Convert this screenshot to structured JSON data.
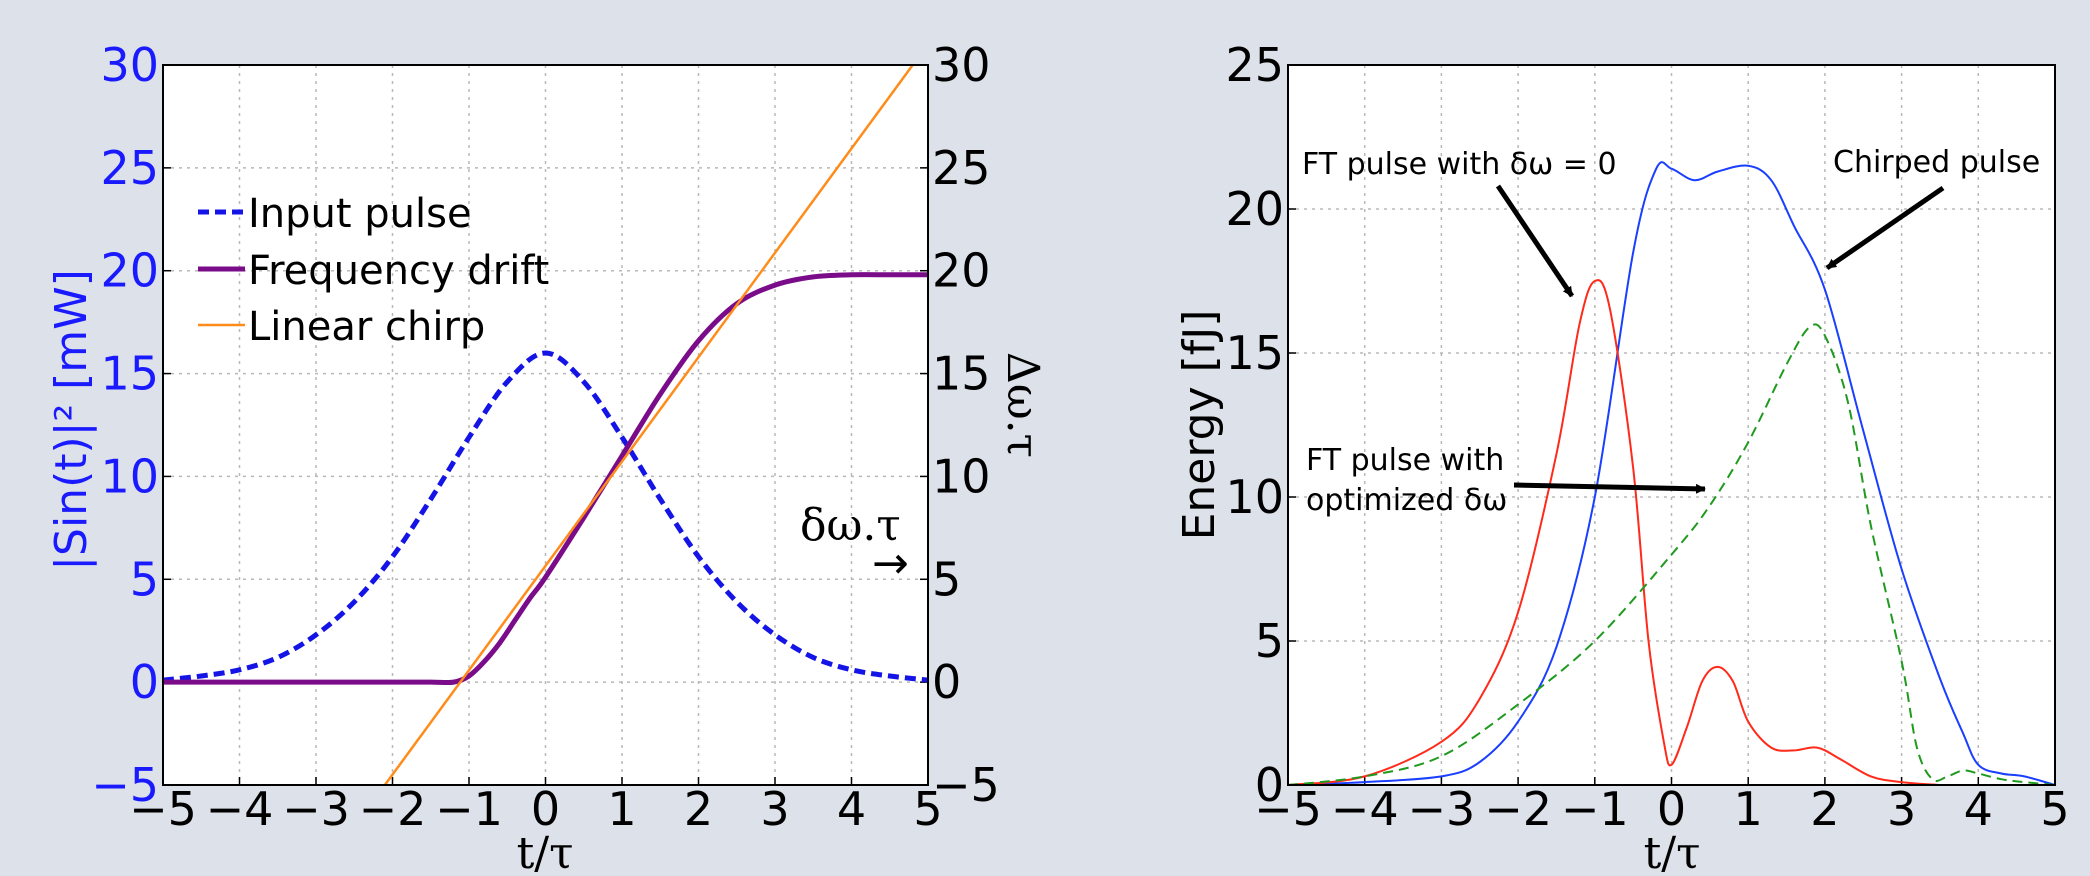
{
  "chart_data": [
    {
      "type": "line",
      "xlabel": "t/τ",
      "ylabel": "|Sin(t)|² [mW]",
      "ylabel_right": "Δω.τ",
      "xlim": [
        -5,
        5
      ],
      "ylim": [
        -5,
        30
      ],
      "ylim_right": [
        -5,
        30
      ],
      "grid": true,
      "legend": "upper-left",
      "x_ticks": [
        "−5",
        "−4",
        "−3",
        "−2",
        "−1",
        "0",
        "1",
        "2",
        "3",
        "4",
        "5"
      ],
      "y_ticks": [
        "−5",
        "0",
        "5",
        "10",
        "15",
        "20",
        "25",
        "30"
      ],
      "y_ticks_right": [
        "−5",
        "0",
        "5",
        "10",
        "15",
        "20",
        "25",
        "30"
      ],
      "colors": {
        "left_axis": "#1a1aff",
        "input": "#1414e6",
        "drift": "#7a0c8a",
        "chirp": "#ff8c1a"
      },
      "series": [
        {
          "name": "Input pulse",
          "style": "dashed",
          "x": [
            -5,
            -4.5,
            -4,
            -3.5,
            -3,
            -2.5,
            -2,
            -1.5,
            -1,
            -0.5,
            0,
            0.5,
            1,
            1.5,
            2,
            2.5,
            3,
            3.5,
            4,
            4.5,
            5
          ],
          "y": [
            0.1,
            0.3,
            0.6,
            1.2,
            2.3,
            3.9,
            6.1,
            8.9,
            11.9,
            14.6,
            16.0,
            14.6,
            11.9,
            8.9,
            6.1,
            3.9,
            2.3,
            1.2,
            0.6,
            0.3,
            0.1
          ]
        },
        {
          "name": "Frequency drift",
          "style": "solid",
          "x": [
            -5,
            -4,
            -3,
            -2,
            -1.5,
            -1.2,
            -1,
            -0.8,
            -0.6,
            -0.4,
            -0.2,
            0,
            0.5,
            1,
            1.5,
            2,
            2.5,
            3,
            3.5,
            4,
            4.5,
            5
          ],
          "y": [
            0,
            0,
            0,
            0,
            0,
            0,
            0.3,
            1.0,
            1.9,
            3.0,
            4.1,
            5.1,
            8.0,
            11.0,
            14.0,
            16.6,
            18.4,
            19.3,
            19.7,
            19.8,
            19.8,
            19.8
          ]
        },
        {
          "name": "Linear chirp",
          "style": "solid",
          "x": [
            -2.1,
            4.8
          ],
          "y": [
            -5,
            30
          ]
        }
      ],
      "annotations": [
        {
          "text": "δω.τ",
          "arrow": "→",
          "x": 4.6,
          "y": 5.5
        }
      ]
    },
    {
      "type": "line",
      "xlabel": "t/τ",
      "ylabel": "Energy [fJ]",
      "xlim": [
        -5,
        5
      ],
      "ylim": [
        0,
        25
      ],
      "grid": true,
      "x_ticks": [
        "−5",
        "−4",
        "−3",
        "−2",
        "−1",
        "0",
        "1",
        "2",
        "3",
        "4",
        "5"
      ],
      "y_ticks": [
        "0",
        "5",
        "10",
        "15",
        "20",
        "25"
      ],
      "colors": {
        "chirped": "#1a3fff",
        "ft_zero": "#ff2a1a",
        "ft_opt": "#1f9a1f"
      },
      "series": [
        {
          "style": "solid",
          "color": "blue",
          "x": [
            -5,
            -4,
            -3,
            -2.5,
            -2,
            -1.5,
            -1,
            -0.5,
            -0.2,
            0,
            0.3,
            0.6,
            1,
            1.3,
            1.6,
            2,
            2.5,
            3,
            3.5,
            3.8,
            4,
            4.3,
            4.6,
            5
          ],
          "y": [
            0,
            0.1,
            0.3,
            0.8,
            2.2,
            4.8,
            10.0,
            18.5,
            21.4,
            21.4,
            21.0,
            21.3,
            21.5,
            21.0,
            19.4,
            17.2,
            12.3,
            7.5,
            3.7,
            1.8,
            0.7,
            0.4,
            0.3,
            0
          ]
        },
        {
          "style": "solid",
          "color": "red",
          "x": [
            -5,
            -4,
            -3,
            -2.5,
            -2,
            -1.5,
            -1.2,
            -1,
            -0.8,
            -0.5,
            -0.3,
            -0.1,
            0,
            0.2,
            0.4,
            0.6,
            0.8,
            1,
            1.3,
            1.6,
            1.9,
            2.2,
            2.6,
            3,
            3.5
          ],
          "y": [
            0,
            0.3,
            1.5,
            3.0,
            6.0,
            11.5,
            16.0,
            17.5,
            16.5,
            11.0,
            5.0,
            1.5,
            0.7,
            2.0,
            3.6,
            4.1,
            3.6,
            2.2,
            1.3,
            1.2,
            1.3,
            0.9,
            0.3,
            0.1,
            0
          ]
        },
        {
          "style": "dashed",
          "color": "green",
          "x": [
            -5,
            -4,
            -3,
            -2,
            -1,
            0,
            0.5,
            1,
            1.5,
            1.8,
            2,
            2.3,
            2.6,
            3,
            3.2,
            3.4,
            3.6,
            3.8,
            4,
            4.3,
            4.6,
            5
          ],
          "y": [
            0,
            0.3,
            1.0,
            2.8,
            5.0,
            8.0,
            9.7,
            11.9,
            14.6,
            15.9,
            15.6,
            13.3,
            9.0,
            4.3,
            1.3,
            0.2,
            0.3,
            0.5,
            0.4,
            0.2,
            0.1,
            0
          ]
        }
      ],
      "annotations": [
        {
          "text": "FT pulse with δω = 0",
          "arrow_to": [
            -1.1,
            17.5
          ]
        },
        {
          "text": "Chirped pulse",
          "arrow_to": [
            2.0,
            18.0
          ]
        },
        {
          "text": "FT pulse with",
          "text2": "optimized δω",
          "arrow_to": [
            0.4,
            10.2
          ]
        }
      ]
    }
  ]
}
